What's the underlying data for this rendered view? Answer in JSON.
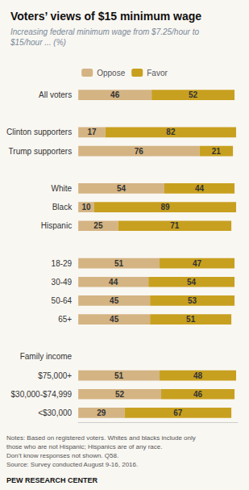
{
  "chart_data": {
    "type": "bar",
    "orientation": "horizontal",
    "stacked": true,
    "data_labels": true,
    "tick_labels": "y",
    "grid": false,
    "legend": "top",
    "title": "Voters’ views of $15 minimum wage",
    "subtitle": "Increasing federal minimum wage from $7.25/hour to\n$15/hour ... (%)",
    "annotations": [
      "Notes: Based on registered voters. Whites and blacks include only\nthose who are not Hispanic; Hispanics are of any race.\nDon’t know responses not shown. Q58.\nSource: Survey conducted August 9-16, 2016.",
      "PEW RESEARCH CENTER"
    ],
    "categories": [
      "All voters",
      null,
      "Clinton supporters",
      "Trump supporters",
      null,
      "White",
      "Black",
      "Hispanic",
      null,
      "18-29",
      "30-49",
      "50-64",
      "65+",
      null,
      "Family income",
      "$75,000+",
      "$30,000-$74,999",
      "<$30,000"
    ],
    "series": [
      {
        "name": "Oppose",
        "color": "#d4b483",
        "values": [
          46,
          null,
          17,
          76,
          null,
          54,
          10,
          25,
          null,
          51,
          44,
          45,
          45,
          null,
          null,
          51,
          52,
          29
        ]
      },
      {
        "name": "Favor",
        "color": "#c8a020",
        "values": [
          52,
          null,
          82,
          21,
          null,
          44,
          89,
          71,
          null,
          47,
          54,
          53,
          51,
          null,
          null,
          48,
          46,
          67
        ]
      }
    ],
    "xlim": [
      0,
      100
    ]
  }
}
